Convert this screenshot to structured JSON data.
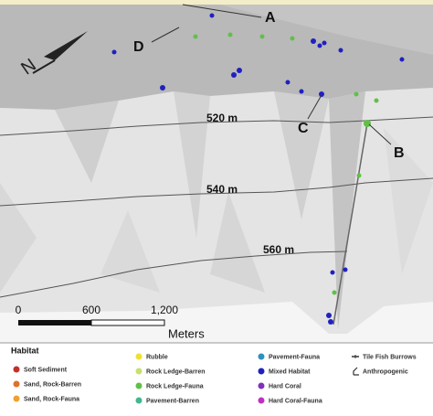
{
  "callouts": [
    "A",
    "B",
    "C",
    "D"
  ],
  "contours": [
    "520 m",
    "540 m",
    "560 m"
  ],
  "north": "N",
  "scale_bar": {
    "labels": [
      "0",
      "600",
      "1,200"
    ],
    "unit": "Meters"
  },
  "legend": {
    "title": "Habitat",
    "items": [
      {
        "name": "Soft Sediment",
        "color": "#c0312b"
      },
      {
        "name": "Sand, Rock-Barren",
        "color": "#e0702a"
      },
      {
        "name": "Sand, Rock-Fauna",
        "color": "#f0a030"
      },
      {
        "name": "Rubble",
        "color": "#f0e030"
      },
      {
        "name": "Rock Ledge-Barren",
        "color": "#c8e070"
      },
      {
        "name": "Rock Ledge-Fauna",
        "color": "#60c048"
      },
      {
        "name": "Pavement-Barren",
        "color": "#40b890"
      },
      {
        "name": "Pavement-Fauna",
        "color": "#3090c0"
      },
      {
        "name": "Mixed Habitat",
        "color": "#2020c0"
      },
      {
        "name": "Hard Coral",
        "color": "#8030c0"
      },
      {
        "name": "Hard Coral-Fauna",
        "color": "#c030c0"
      },
      {
        "name": "Tile Fish Burrows"
      },
      {
        "name": "Anthropogenic"
      }
    ]
  }
}
